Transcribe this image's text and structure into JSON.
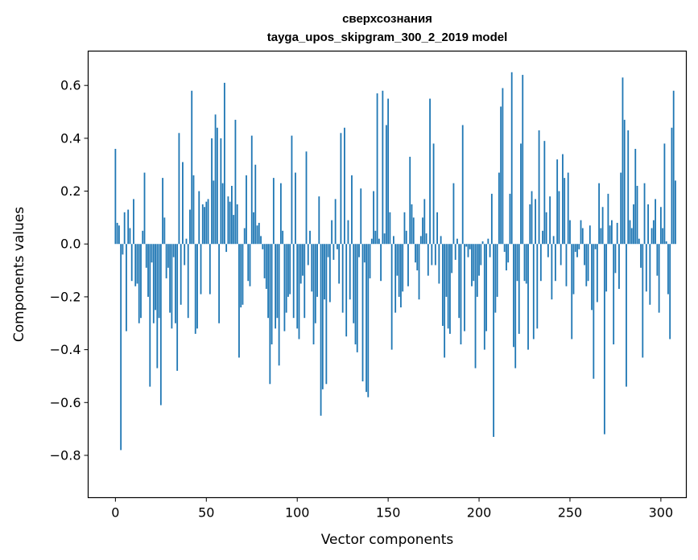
{
  "chart_data": {
    "type": "bar",
    "title": "сверхсознания",
    "subtitle": "tayga_upos_skipgram_300_2_2019 model",
    "xlabel": "Vector components",
    "ylabel": "Components values",
    "xlim": [
      -15,
      314
    ],
    "ylim": [
      -0.96,
      0.73
    ],
    "xticks": [
      0,
      50,
      100,
      150,
      200,
      250,
      300
    ],
    "xtick_labels": [
      "0",
      "50",
      "100",
      "150",
      "200",
      "250",
      "300"
    ],
    "yticks": [
      -0.8,
      -0.6,
      -0.4,
      -0.2,
      0.0,
      0.2,
      0.4,
      0.6
    ],
    "ytick_labels": [
      "−0.8",
      "−0.6",
      "−0.4",
      "−0.2",
      "0.0",
      "0.2",
      "0.4",
      "0.6"
    ],
    "bar_color": "#1f77b4",
    "grid": false,
    "values": [
      0.36,
      0.08,
      0.07,
      -0.78,
      -0.04,
      0.12,
      -0.33,
      0.13,
      0.06,
      -0.14,
      0.17,
      -0.16,
      -0.15,
      -0.3,
      -0.28,
      0.05,
      0.27,
      -0.09,
      -0.2,
      -0.54,
      -0.07,
      -0.3,
      -0.25,
      -0.47,
      -0.28,
      -0.61,
      0.25,
      0.1,
      -0.13,
      -0.09,
      -0.26,
      -0.32,
      -0.05,
      -0.3,
      -0.48,
      0.42,
      -0.23,
      0.31,
      -0.08,
      0.02,
      -0.28,
      0.13,
      0.58,
      0.26,
      -0.34,
      -0.32,
      0.2,
      -0.19,
      0.15,
      0.14,
      0.16,
      0.17,
      -0.19,
      0.4,
      0.24,
      0.49,
      0.44,
      -0.3,
      0.4,
      0.23,
      0.61,
      -0.03,
      0.18,
      0.16,
      0.22,
      0.11,
      0.47,
      0.15,
      -0.43,
      -0.24,
      -0.23,
      0.06,
      0.26,
      -0.14,
      -0.16,
      0.41,
      0.12,
      0.3,
      0.07,
      0.08,
      0.03,
      -0.02,
      -0.13,
      -0.17,
      -0.28,
      -0.53,
      -0.38,
      0.25,
      -0.32,
      -0.28,
      -0.46,
      0.23,
      0.05,
      -0.33,
      -0.26,
      -0.2,
      -0.19,
      0.41,
      -0.28,
      0.27,
      -0.32,
      -0.36,
      -0.15,
      -0.12,
      -0.28,
      0.35,
      -0.08,
      0.05,
      -0.18,
      -0.38,
      -0.3,
      -0.2,
      0.18,
      -0.65,
      -0.55,
      -0.21,
      -0.53,
      -0.05,
      -0.22,
      0.09,
      -0.06,
      0.17,
      -0.02,
      -0.15,
      0.42,
      -0.26,
      0.44,
      -0.35,
      0.09,
      -0.21,
      0.26,
      -0.3,
      -0.38,
      -0.41,
      -0.05,
      0.21,
      -0.52,
      -0.07,
      -0.56,
      -0.58,
      -0.13,
      0.02,
      0.2,
      0.05,
      0.57,
      0.02,
      -0.14,
      0.58,
      0.04,
      0.45,
      0.55,
      0.12,
      -0.4,
      0.03,
      -0.26,
      -0.12,
      -0.2,
      -0.24,
      -0.18,
      0.12,
      0.05,
      -0.16,
      0.33,
      0.15,
      0.1,
      -0.07,
      -0.1,
      -0.21,
      0.03,
      0.1,
      0.17,
      0.04,
      -0.12,
      0.55,
      -0.08,
      0.38,
      -0.08,
      0.12,
      -0.15,
      0.03,
      -0.31,
      -0.43,
      -0.2,
      -0.32,
      -0.34,
      -0.11,
      0.23,
      -0.06,
      0.02,
      -0.28,
      -0.38,
      0.45,
      -0.33,
      -0.01,
      -0.05,
      -0.02,
      -0.16,
      -0.14,
      -0.47,
      -0.2,
      -0.12,
      -0.08,
      0.01,
      -0.4,
      -0.33,
      0.02,
      -0.05,
      0.19,
      -0.73,
      -0.26,
      -0.2,
      0.27,
      0.52,
      0.59,
      -0.03,
      -0.1,
      -0.07,
      0.19,
      0.65,
      -0.39,
      -0.47,
      -0.14,
      -0.34,
      0.38,
      0.64,
      -0.14,
      -0.15,
      -0.4,
      0.15,
      0.2,
      -0.36,
      0.17,
      -0.32,
      0.43,
      -0.14,
      0.05,
      0.39,
      0.12,
      -0.05,
      0.18,
      -0.21,
      0.03,
      -0.14,
      0.32,
      0.2,
      -0.08,
      0.34,
      0.25,
      -0.16,
      0.27,
      0.09,
      -0.36,
      -0.19,
      -0.03,
      -0.05,
      -0.02,
      0.09,
      0.06,
      -0.08,
      -0.16,
      -0.14,
      0.07,
      -0.25,
      -0.51,
      -0.02,
      -0.22,
      0.23,
      0.06,
      0.14,
      -0.72,
      -0.18,
      0.19,
      0.07,
      0.09,
      -0.38,
      -0.11,
      0.08,
      -0.17,
      0.27,
      0.63,
      0.47,
      -0.54,
      0.43,
      0.09,
      0.06,
      0.15,
      0.36,
      0.22,
      0.02,
      -0.09,
      -0.43,
      0.23,
      -0.18,
      0.15,
      -0.23,
      0.06,
      0.09,
      0.17,
      -0.12,
      -0.26,
      0.14,
      0.06,
      0.38,
      0.01,
      -0.19,
      -0.36,
      0.44,
      0.58,
      0.24
    ]
  }
}
